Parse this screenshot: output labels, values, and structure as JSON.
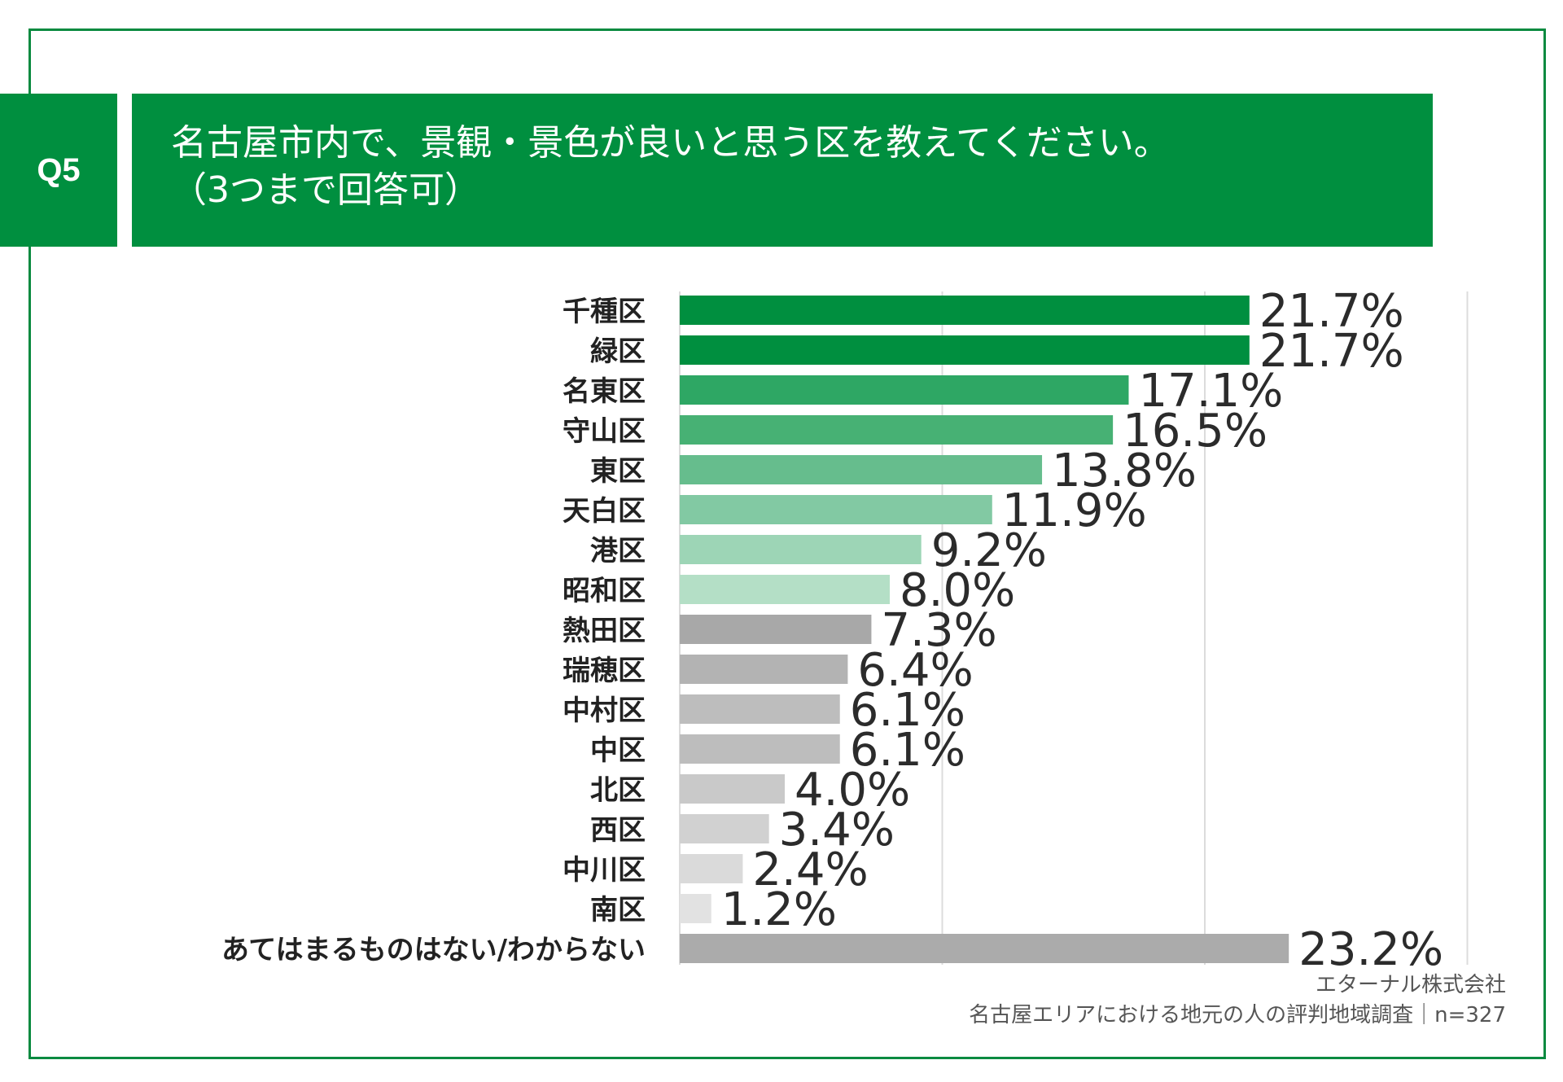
{
  "question": {
    "badge": "Q5",
    "title_line1": "名古屋市内で、景観・景色が良いと思う区を教えてください。",
    "title_line2": "（3つまで回答可）"
  },
  "source": {
    "company": "エターナル株式会社",
    "survey": "名古屋エリアにおける地元の人の評判地域調査｜n=327"
  },
  "colors": {
    "frame": "#0a8a40",
    "header": "#008f3f"
  },
  "chart_data": {
    "type": "bar",
    "orientation": "horizontal",
    "categories": [
      "千種区",
      "緑区",
      "名東区",
      "守山区",
      "東区",
      "天白区",
      "港区",
      "昭和区",
      "熱田区",
      "瑞穂区",
      "中村区",
      "中区",
      "北区",
      "西区",
      "中川区",
      "南区",
      "あてはまるものはない/わからない"
    ],
    "values": [
      21.7,
      21.7,
      17.1,
      16.5,
      13.8,
      11.9,
      9.2,
      8.0,
      7.3,
      6.4,
      6.1,
      6.1,
      4.0,
      3.4,
      2.4,
      1.2,
      23.2
    ],
    "value_labels": [
      "21.7%",
      "21.7%",
      "17.1%",
      "16.5%",
      "13.8%",
      "11.9%",
      "9.2%",
      "8.0%",
      "7.3%",
      "6.4%",
      "6.1%",
      "6.1%",
      "4.0%",
      "3.4%",
      "2.4%",
      "1.2%",
      "23.2%"
    ],
    "bar_colors": [
      "#008f3f",
      "#008f3f",
      "#2ea764",
      "#47b174",
      "#66bd8d",
      "#82c9a3",
      "#9dd5b6",
      "#b4dfc6",
      "#a8a8a8",
      "#b3b3b3",
      "#bdbdbd",
      "#bdbdbd",
      "#c9c9c9",
      "#d1d1d1",
      "#dadada",
      "#e2e2e2",
      "#ababab"
    ],
    "xlim": [
      0,
      30
    ],
    "gridlines": [
      10,
      20,
      30
    ],
    "grid": true,
    "legend": false
  }
}
